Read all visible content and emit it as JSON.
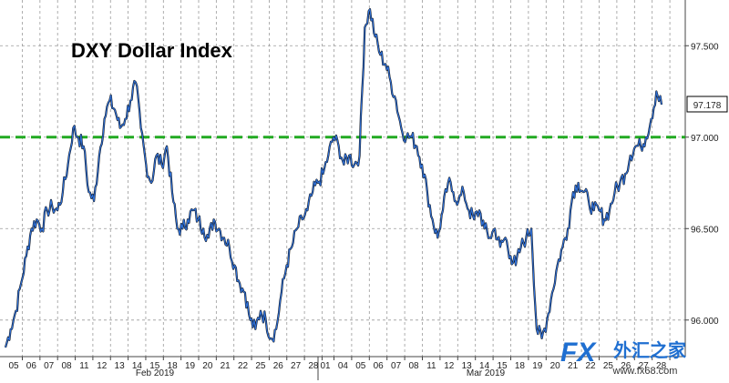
{
  "chart_data": {
    "type": "line",
    "title": "DXY Dollar Index",
    "ylim": [
      95.8,
      97.75
    ],
    "yticks": [
      "96.000",
      "96.500",
      "97.000",
      "97.500"
    ],
    "grid": true,
    "reference_line": {
      "value": 97.0,
      "color": "#22aa22",
      "style": "dashed"
    },
    "last_value": 97.178,
    "last_value_label": "97.178",
    "xlabels": {
      "feb": [
        "05",
        "06",
        "07",
        "08",
        "11",
        "12",
        "13",
        "14",
        "15",
        "18",
        "19",
        "20",
        "21",
        "22",
        "25",
        "26",
        "27",
        "28"
      ],
      "mar": [
        "01",
        "04",
        "05",
        "06",
        "07",
        "08",
        "11",
        "12",
        "13",
        "14",
        "15",
        "18",
        "19",
        "20",
        "21",
        "22",
        "25",
        "26",
        "27",
        "28"
      ]
    },
    "months": [
      "Feb 2019",
      "Mar 2019"
    ],
    "series": [
      {
        "values": [
          95.85,
          95.95,
          96.05,
          96.2,
          96.35,
          96.5,
          96.55,
          96.5,
          96.6,
          96.62,
          96.6,
          96.7,
          96.85,
          97.05,
          97.0,
          96.95,
          96.7,
          96.65,
          96.9,
          97.1,
          97.2,
          97.15,
          97.05,
          97.1,
          97.2,
          97.3,
          97.05,
          96.85,
          96.75,
          96.9,
          96.85,
          96.95,
          96.7,
          96.5,
          96.5,
          96.55,
          96.6,
          96.55,
          96.5,
          96.45,
          96.55,
          96.5,
          96.45,
          96.4,
          96.3,
          96.2,
          96.15,
          96.0,
          95.95,
          96.05,
          96.0,
          95.9,
          95.95,
          96.15,
          96.3,
          96.4,
          96.5,
          96.55,
          96.6,
          96.7,
          96.75,
          96.8,
          96.9,
          97.0,
          96.95,
          96.85,
          96.9,
          96.85,
          96.9,
          97.6,
          97.7,
          97.55,
          97.45,
          97.4,
          97.3,
          97.2,
          97.05,
          97.0,
          97.0,
          96.95,
          96.85,
          96.7,
          96.55,
          96.45,
          96.6,
          96.75,
          96.7,
          96.65,
          96.7,
          96.6,
          96.55,
          96.6,
          96.5,
          96.45,
          96.5,
          96.4,
          96.45,
          96.35,
          96.3,
          96.4,
          96.45,
          96.5,
          95.95,
          95.9,
          96.0,
          96.15,
          96.3,
          96.4,
          96.5,
          96.7,
          96.75,
          96.7,
          96.65,
          96.6,
          96.6,
          96.55,
          96.6,
          96.7,
          96.75,
          96.8,
          96.9,
          96.95,
          96.95,
          97.0,
          97.1,
          97.25,
          97.178
        ]
      }
    ]
  },
  "watermark": {
    "brand": "FX",
    "chinese": "外汇之家",
    "url": "www.fx68.com"
  }
}
